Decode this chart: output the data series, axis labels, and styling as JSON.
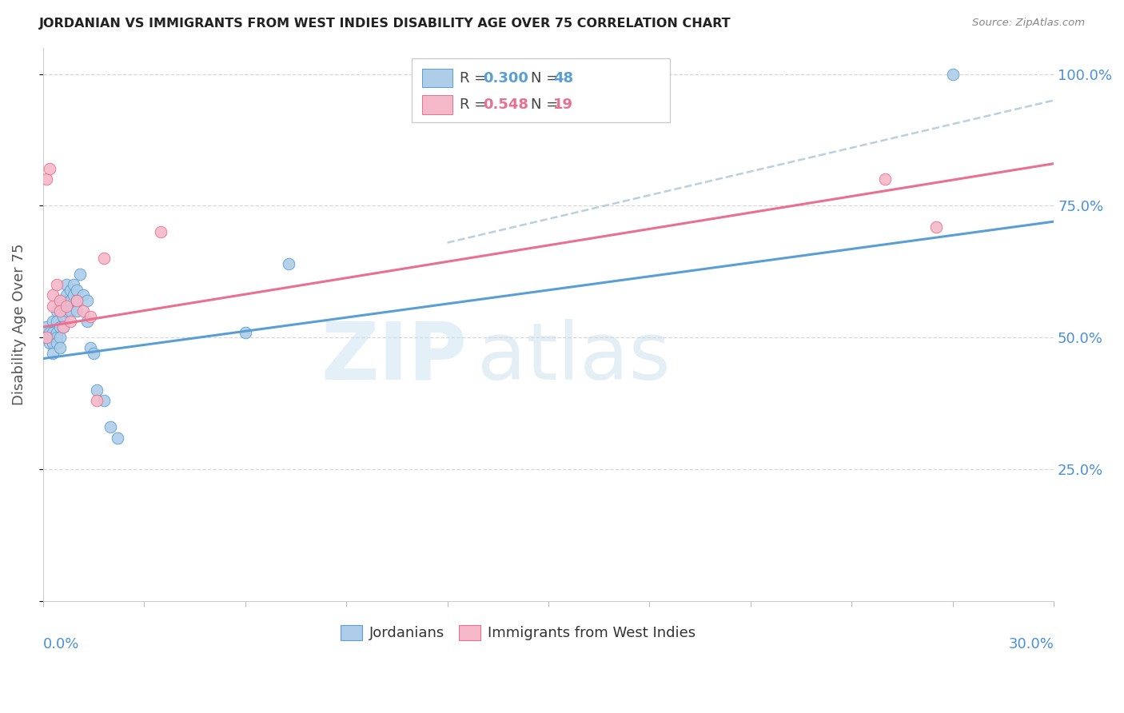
{
  "title": "JORDANIAN VS IMMIGRANTS FROM WEST INDIES DISABILITY AGE OVER 75 CORRELATION CHART",
  "source": "Source: ZipAtlas.com",
  "ylabel": "Disability Age Over 75",
  "legend_blue_R": "0.300",
  "legend_blue_N": "48",
  "legend_pink_R": "0.548",
  "legend_pink_N": "19",
  "legend_blue_label": "Jordanians",
  "legend_pink_label": "Immigrants from West Indies",
  "blue_fill": "#aecde8",
  "pink_fill": "#f5b8c8",
  "blue_edge": "#5a9fd4",
  "pink_edge": "#e87090",
  "line_blue_color": "#5a9fd4",
  "line_pink_color": "#e87090",
  "line_dash_color": "#b0c8d8",
  "title_color": "#222222",
  "source_color": "#888888",
  "ylabel_color": "#555555",
  "tick_label_color": "#4a90d9",
  "grid_color": "#d8d8d8",
  "watermark_zip_color": "#cce0f0",
  "watermark_atlas_color": "#c8dce8",
  "xmin": 0.0,
  "xmax": 0.3,
  "ymin": 0.0,
  "ymax": 1.05,
  "jordanians_x": [
    0.001,
    0.001,
    0.002,
    0.002,
    0.002,
    0.003,
    0.003,
    0.003,
    0.003,
    0.003,
    0.004,
    0.004,
    0.004,
    0.004,
    0.004,
    0.005,
    0.005,
    0.005,
    0.005,
    0.005,
    0.006,
    0.006,
    0.006,
    0.006,
    0.007,
    0.007,
    0.007,
    0.008,
    0.008,
    0.008,
    0.009,
    0.009,
    0.01,
    0.01,
    0.01,
    0.011,
    0.012,
    0.013,
    0.013,
    0.014,
    0.015,
    0.016,
    0.018,
    0.02,
    0.022,
    0.06,
    0.073,
    0.27
  ],
  "jordanians_y": [
    0.5,
    0.52,
    0.51,
    0.5,
    0.49,
    0.53,
    0.51,
    0.5,
    0.49,
    0.47,
    0.55,
    0.53,
    0.51,
    0.5,
    0.49,
    0.56,
    0.55,
    0.52,
    0.5,
    0.48,
    0.57,
    0.56,
    0.54,
    0.52,
    0.6,
    0.58,
    0.55,
    0.59,
    0.57,
    0.55,
    0.6,
    0.58,
    0.59,
    0.57,
    0.55,
    0.62,
    0.58,
    0.57,
    0.53,
    0.48,
    0.47,
    0.4,
    0.38,
    0.33,
    0.31,
    0.51,
    0.64,
    1.0
  ],
  "westindies_x": [
    0.001,
    0.001,
    0.002,
    0.003,
    0.003,
    0.004,
    0.005,
    0.005,
    0.006,
    0.007,
    0.008,
    0.01,
    0.012,
    0.014,
    0.016,
    0.018,
    0.035,
    0.25,
    0.265
  ],
  "westindies_y": [
    0.5,
    0.8,
    0.82,
    0.56,
    0.58,
    0.6,
    0.57,
    0.55,
    0.52,
    0.56,
    0.53,
    0.57,
    0.55,
    0.54,
    0.38,
    0.65,
    0.7,
    0.8,
    0.71
  ],
  "blue_trendline_x0": 0.0,
  "blue_trendline_x1": 0.3,
  "blue_trendline_y0": 0.46,
  "blue_trendline_y1": 0.72,
  "pink_trendline_x0": 0.0,
  "pink_trendline_x1": 0.3,
  "pink_trendline_y0": 0.52,
  "pink_trendline_y1": 0.83,
  "dash_trendline_x0": 0.12,
  "dash_trendline_x1": 0.3,
  "dash_trendline_y0": 0.68,
  "dash_trendline_y1": 0.95
}
